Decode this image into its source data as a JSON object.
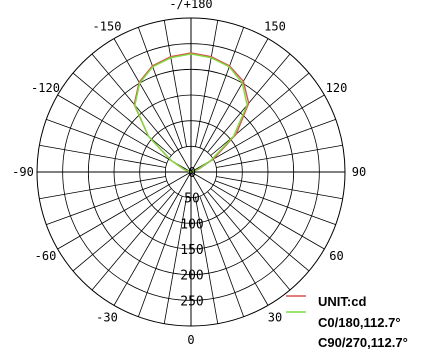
{
  "chart_data": {
    "type": "polar-line",
    "title": "",
    "unit_label": "UNIT:cd",
    "angle_labels": [
      {
        "label": "-/+180",
        "angle": 0
      },
      {
        "label": "150",
        "angle": 30
      },
      {
        "label": "120",
        "angle": 60
      },
      {
        "label": "90",
        "angle": 90
      },
      {
        "label": "60",
        "angle": 120
      },
      {
        "label": "30",
        "angle": 150
      },
      {
        "label": "0",
        "angle": 180
      },
      {
        "label": "-30",
        "angle": -150
      },
      {
        "label": "-60",
        "angle": -120
      },
      {
        "label": "-90",
        "angle": -90
      },
      {
        "label": "-120",
        "angle": -60
      },
      {
        "label": "-150",
        "angle": -30
      }
    ],
    "radial_ticks": [
      0,
      50,
      100,
      150,
      200,
      250
    ],
    "r_max": 300,
    "spoke_step_deg": 10,
    "grid": true,
    "legend_position": "bottom-right",
    "series": [
      {
        "name": "C0/180,112.7°",
        "color": "#d9534f",
        "points": [
          {
            "angle": 0,
            "r": 232
          },
          {
            "angle": 10,
            "r": 228
          },
          {
            "angle": 20,
            "r": 220
          },
          {
            "angle": 30,
            "r": 204
          },
          {
            "angle": 40,
            "r": 175
          },
          {
            "angle": 50,
            "r": 115
          },
          {
            "angle": 60,
            "r": 50
          },
          {
            "angle": 70,
            "r": 15
          },
          {
            "angle": 80,
            "r": 3
          },
          {
            "angle": 90,
            "r": 0
          },
          {
            "angle": -90,
            "r": 0
          },
          {
            "angle": -80,
            "r": 3
          },
          {
            "angle": -70,
            "r": 14
          },
          {
            "angle": -60,
            "r": 45
          },
          {
            "angle": -50,
            "r": 108
          },
          {
            "angle": -40,
            "r": 172
          },
          {
            "angle": -30,
            "r": 202
          },
          {
            "angle": -20,
            "r": 220
          },
          {
            "angle": -10,
            "r": 228
          }
        ]
      },
      {
        "name": "C90/270,112.7°",
        "color": "#7ddc3a",
        "points": [
          {
            "angle": 0,
            "r": 230
          },
          {
            "angle": 10,
            "r": 226
          },
          {
            "angle": 20,
            "r": 218
          },
          {
            "angle": 30,
            "r": 200
          },
          {
            "angle": 40,
            "r": 170
          },
          {
            "angle": 50,
            "r": 108
          },
          {
            "angle": 60,
            "r": 44
          },
          {
            "angle": 70,
            "r": 12
          },
          {
            "angle": 80,
            "r": 2
          },
          {
            "angle": 90,
            "r": 0
          },
          {
            "angle": -90,
            "r": 0
          },
          {
            "angle": -80,
            "r": 2
          },
          {
            "angle": -70,
            "r": 12
          },
          {
            "angle": -60,
            "r": 44
          },
          {
            "angle": -50,
            "r": 108
          },
          {
            "angle": -40,
            "r": 170
          },
          {
            "angle": -30,
            "r": 200
          },
          {
            "angle": -20,
            "r": 218
          },
          {
            "angle": -10,
            "r": 226
          }
        ]
      }
    ]
  }
}
